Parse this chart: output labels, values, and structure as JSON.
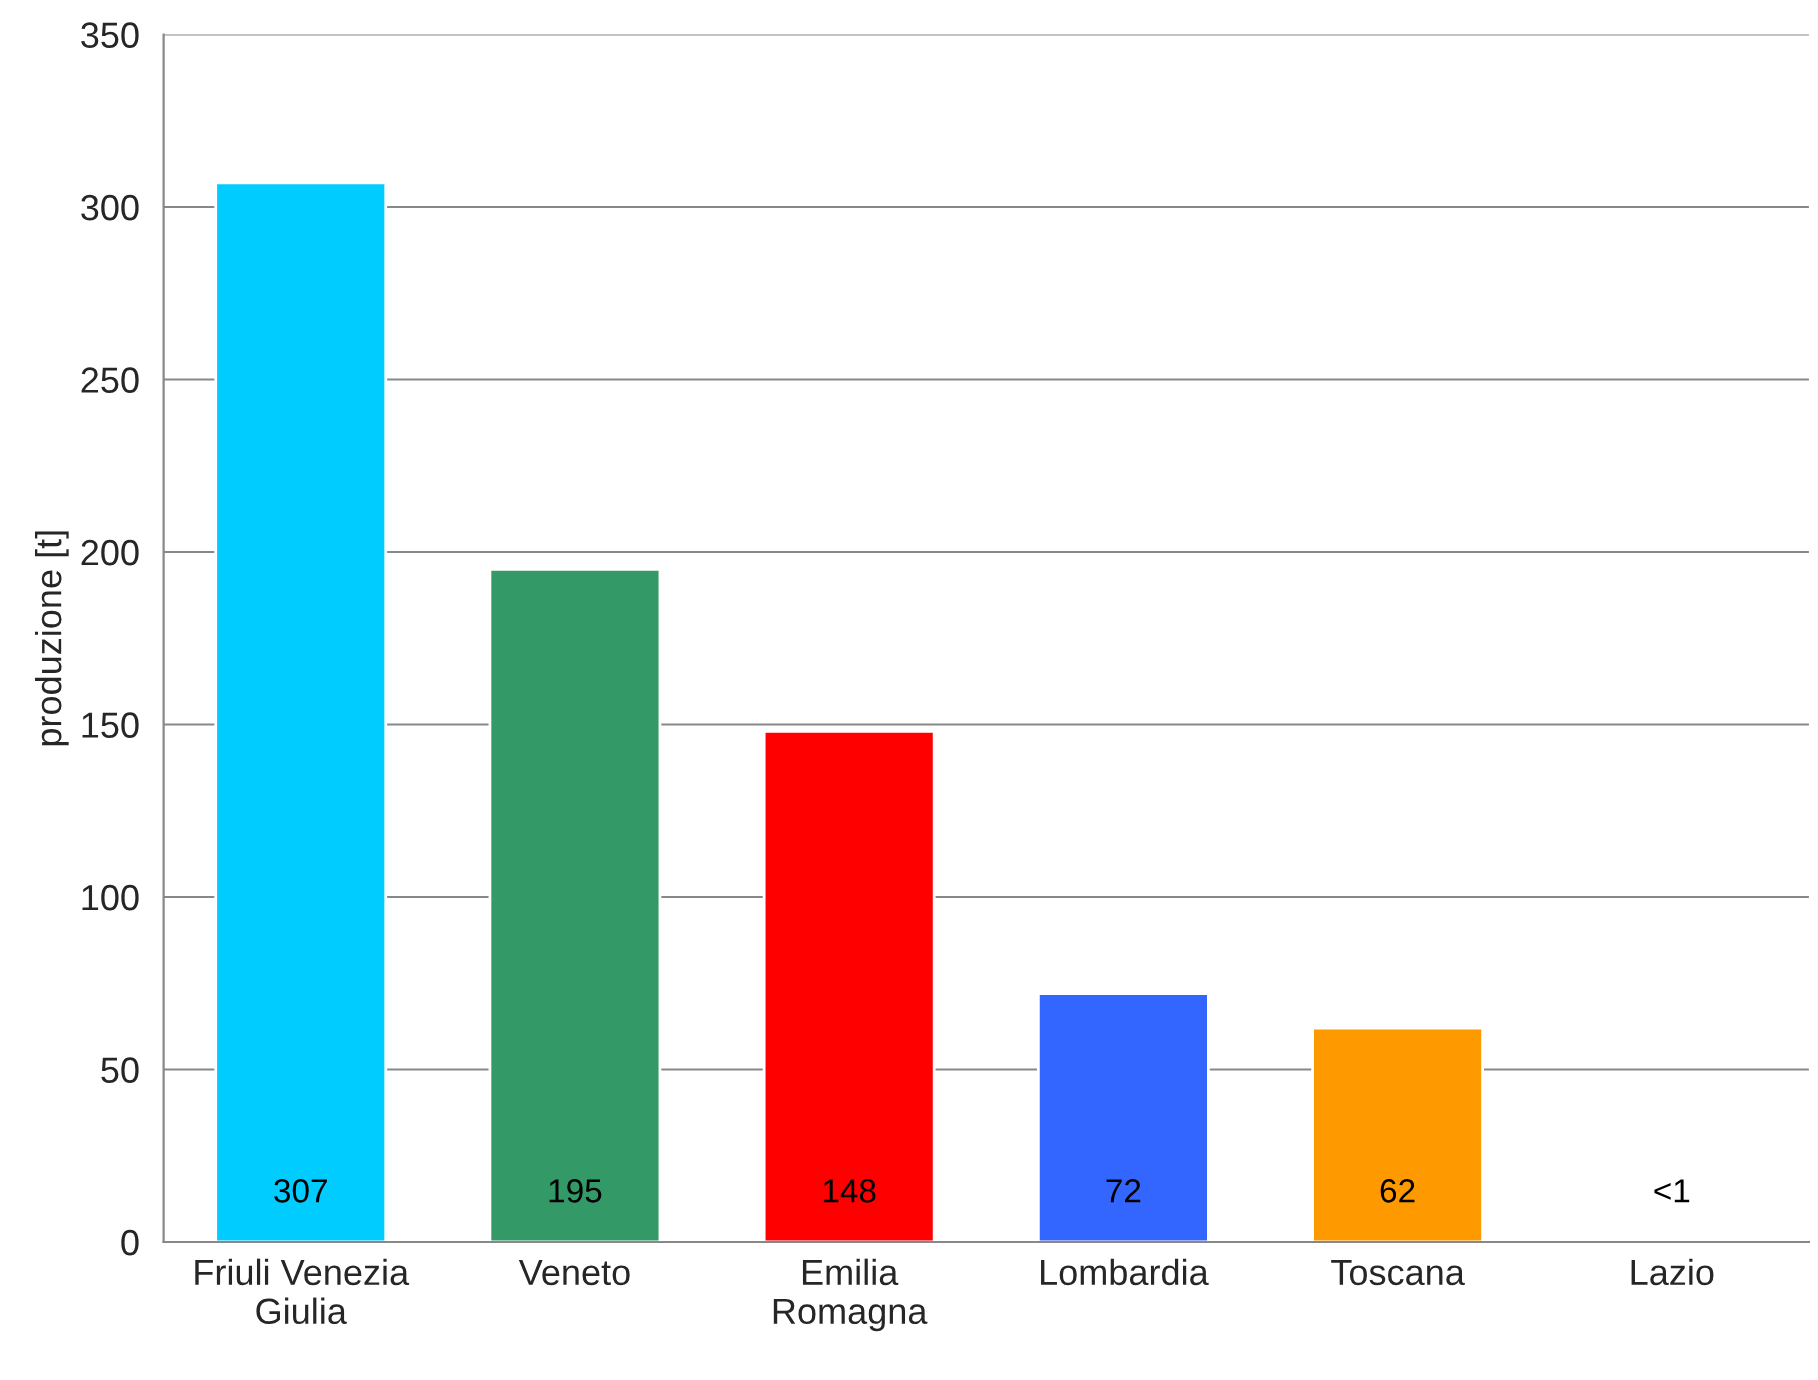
{
  "chart_data": {
    "type": "bar",
    "ylabel": "produzione [t]",
    "categories": [
      "Friuli Venezia\nGiulia",
      "Veneto",
      "Emilia\nRomagna",
      "Lombardia",
      "Toscana",
      "Lazio"
    ],
    "values": [
      307,
      195,
      148,
      72,
      62,
      0.8
    ],
    "colors": [
      "#00ccff",
      "#339966",
      "#ff0000",
      "#3366ff",
      "#ff9900",
      "#993399"
    ],
    "value_labels": [
      "307",
      "195",
      "148",
      "72",
      "62",
      "<1"
    ],
    "ylim": [
      0,
      350
    ],
    "yticks": [
      0,
      50,
      100,
      150,
      200,
      250,
      300,
      350
    ],
    "grid": "y"
  }
}
